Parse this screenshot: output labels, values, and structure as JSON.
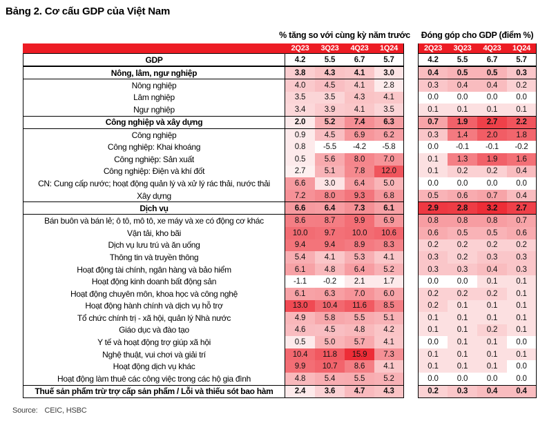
{
  "title": "Bảng 2. Cơ cấu GDP của Việt Nam",
  "source": {
    "label": "Source:",
    "text": "CEIC, HSBC"
  },
  "colors": {
    "header_red": "#ed1c24",
    "heat_max": "#ed2d37",
    "heat_min": "#ffffff"
  },
  "chart_data": {
    "type": "heatmap",
    "title": "Bảng 2. Cơ cấu GDP của Việt Nam",
    "column_groups": [
      {
        "label": "% tăng so với cùng kỳ năm trước",
        "columns": [
          "2Q23",
          "3Q23",
          "4Q23",
          "1Q24"
        ]
      },
      {
        "label": "Đóng góp cho GDP (điểm %)",
        "columns": [
          "2Q23",
          "3Q23",
          "4Q23",
          "1Q24"
        ]
      }
    ],
    "legend": "red intensity scales with value; negatives and zeros are white; GDP row unshaded",
    "rows": [
      {
        "label": "GDP",
        "bold": true,
        "section": false,
        "shade": false,
        "growth": [
          4.2,
          5.5,
          6.7,
          5.7
        ],
        "contribution": [
          4.2,
          5.5,
          6.7,
          5.7
        ]
      },
      {
        "label": "Nông, lâm, ngư nghiệp",
        "bold": true,
        "section": true,
        "shade": true,
        "growth": [
          3.8,
          4.3,
          4.1,
          3.0
        ],
        "contribution": [
          0.4,
          0.5,
          0.5,
          0.3
        ]
      },
      {
        "label": "Nông nghiệp",
        "bold": false,
        "section": false,
        "shade": true,
        "growth": [
          4.0,
          4.5,
          4.1,
          2.8
        ],
        "contribution": [
          0.3,
          0.4,
          0.4,
          0.2
        ]
      },
      {
        "label": "Lâm nghiệp",
        "bold": false,
        "section": false,
        "shade": true,
        "growth": [
          3.5,
          3.5,
          4.3,
          4.1
        ],
        "contribution": [
          0.0,
          0.0,
          0.0,
          0.0
        ]
      },
      {
        "label": "Ngư nghiệp",
        "bold": false,
        "section": false,
        "shade": true,
        "growth": [
          3.4,
          3.9,
          4.1,
          3.5
        ],
        "contribution": [
          0.1,
          0.1,
          0.1,
          0.1
        ]
      },
      {
        "label": "Công nghiệp và xây dựng",
        "bold": true,
        "section": true,
        "shade": true,
        "growth": [
          2.0,
          5.2,
          7.4,
          6.3
        ],
        "contribution": [
          0.7,
          1.9,
          2.7,
          2.2
        ]
      },
      {
        "label": "Công nghiệp",
        "bold": false,
        "section": false,
        "shade": true,
        "growth": [
          0.9,
          4.5,
          6.9,
          6.2
        ],
        "contribution": [
          0.3,
          1.4,
          2.0,
          1.8
        ]
      },
      {
        "label": "Công nghiệp: Khai khoáng",
        "bold": false,
        "section": false,
        "shade": true,
        "growth": [
          0.8,
          -5.5,
          -4.2,
          -5.8
        ],
        "contribution": [
          0.0,
          -0.1,
          -0.1,
          -0.2
        ]
      },
      {
        "label": "Công nghiệp: Sản xuất",
        "bold": false,
        "section": false,
        "shade": true,
        "growth": [
          0.5,
          5.6,
          8.0,
          7.0
        ],
        "contribution": [
          0.1,
          1.3,
          1.9,
          1.6
        ]
      },
      {
        "label": "Công nghiệp: Điện và khí đốt",
        "bold": false,
        "section": false,
        "shade": true,
        "growth": [
          2.7,
          5.1,
          7.8,
          12.0
        ],
        "contribution": [
          0.1,
          0.2,
          0.2,
          0.4
        ]
      },
      {
        "label": "CN: Cung cấp nước; hoạt động quản lý và xử lý rác thải, nước thải",
        "bold": false,
        "section": false,
        "shade": true,
        "growth": [
          6.6,
          3.0,
          6.4,
          5.0
        ],
        "contribution": [
          0.0,
          0.0,
          0.0,
          0.0
        ]
      },
      {
        "label": "Xây dựng",
        "bold": false,
        "section": false,
        "shade": true,
        "growth": [
          7.2,
          8.0,
          9.3,
          6.8
        ],
        "contribution": [
          0.5,
          0.6,
          0.7,
          0.4
        ]
      },
      {
        "label": "Dịch vụ",
        "bold": true,
        "section": true,
        "shade": true,
        "growth": [
          6.6,
          6.4,
          7.3,
          6.1
        ],
        "contribution": [
          2.9,
          2.8,
          3.2,
          2.7
        ]
      },
      {
        "label": "Bán buôn và bán lẻ; ô tô, mô tô, xe máy và xe có động cơ khác",
        "bold": false,
        "section": false,
        "shade": true,
        "growth": [
          8.6,
          8.7,
          9.9,
          6.9
        ],
        "contribution": [
          0.8,
          0.8,
          0.8,
          0.7
        ]
      },
      {
        "label": "Vận tải, kho bãi",
        "bold": false,
        "section": false,
        "shade": true,
        "growth": [
          10.0,
          9.7,
          10.0,
          10.6
        ],
        "contribution": [
          0.6,
          0.5,
          0.5,
          0.6
        ]
      },
      {
        "label": "Dịch vụ lưu trú và ăn uống",
        "bold": false,
        "section": false,
        "shade": true,
        "growth": [
          9.4,
          9.4,
          8.9,
          8.3
        ],
        "contribution": [
          0.2,
          0.2,
          0.2,
          0.2
        ]
      },
      {
        "label": "Thông tin và truyền thông",
        "bold": false,
        "section": false,
        "shade": true,
        "growth": [
          5.4,
          4.1,
          5.3,
          4.1
        ],
        "contribution": [
          0.3,
          0.2,
          0.3,
          0.3
        ]
      },
      {
        "label": "Hoạt động tài chính, ngân hàng và bảo hiểm",
        "bold": false,
        "section": false,
        "shade": true,
        "growth": [
          6.1,
          4.8,
          6.4,
          5.2
        ],
        "contribution": [
          0.3,
          0.3,
          0.4,
          0.3
        ]
      },
      {
        "label": "Hoạt động kinh doanh bất động sản",
        "bold": false,
        "section": false,
        "shade": true,
        "growth": [
          -1.1,
          -0.2,
          2.1,
          1.7
        ],
        "contribution": [
          0.0,
          0.0,
          0.1,
          0.1
        ]
      },
      {
        "label": "Hoạt động chuyên môn, khoa học và công nghệ",
        "bold": false,
        "section": false,
        "shade": true,
        "growth": [
          6.1,
          6.3,
          7.0,
          6.0
        ],
        "contribution": [
          0.2,
          0.2,
          0.2,
          0.1
        ]
      },
      {
        "label": "Hoạt động hành chính và dịch vụ hỗ trợ",
        "bold": false,
        "section": false,
        "shade": true,
        "growth": [
          13.0,
          10.4,
          11.6,
          8.5
        ],
        "contribution": [
          0.2,
          0.1,
          0.1,
          0.1
        ]
      },
      {
        "label": "Tổ chức chính trị - xã hội, quản lý Nhà nước",
        "bold": false,
        "section": false,
        "shade": true,
        "growth": [
          4.9,
          5.8,
          5.5,
          5.1
        ],
        "contribution": [
          0.1,
          0.1,
          0.1,
          0.1
        ]
      },
      {
        "label": "Giáo dục và đào tạo",
        "bold": false,
        "section": false,
        "shade": true,
        "growth": [
          4.6,
          4.5,
          4.8,
          4.2
        ],
        "contribution": [
          0.1,
          0.1,
          0.2,
          0.1
        ]
      },
      {
        "label": "Y tế và hoạt động trợ giúp xã hội",
        "bold": false,
        "section": false,
        "shade": true,
        "growth": [
          0.5,
          5.0,
          5.7,
          4.1
        ],
        "contribution": [
          0.0,
          0.1,
          0.1,
          0.0
        ]
      },
      {
        "label": "Nghệ thuật, vui chơi và giải trí",
        "bold": false,
        "section": false,
        "shade": true,
        "growth": [
          10.4,
          11.8,
          15.9,
          7.3
        ],
        "contribution": [
          0.1,
          0.1,
          0.1,
          0.1
        ]
      },
      {
        "label": "Hoạt động dịch vụ khác",
        "bold": false,
        "section": false,
        "shade": true,
        "growth": [
          9.9,
          10.7,
          8.6,
          4.1
        ],
        "contribution": [
          0.1,
          0.1,
          0.1,
          0.0
        ]
      },
      {
        "label": "Hoạt động làm thuê các công việc trong các hộ gia đình",
        "bold": false,
        "section": false,
        "shade": true,
        "growth": [
          4.8,
          5.4,
          5.5,
          5.2
        ],
        "contribution": [
          0.0,
          0.0,
          0.0,
          0.0
        ]
      },
      {
        "label": "Thuế sản phẩm trừ trợ cấp sản phẩm / Lỗi và thiếu sót bao hàm",
        "bold": true,
        "section": true,
        "shade": true,
        "growth": [
          2.4,
          3.6,
          4.7,
          4.3
        ],
        "contribution": [
          0.2,
          0.3,
          0.4,
          0.4
        ]
      }
    ]
  }
}
